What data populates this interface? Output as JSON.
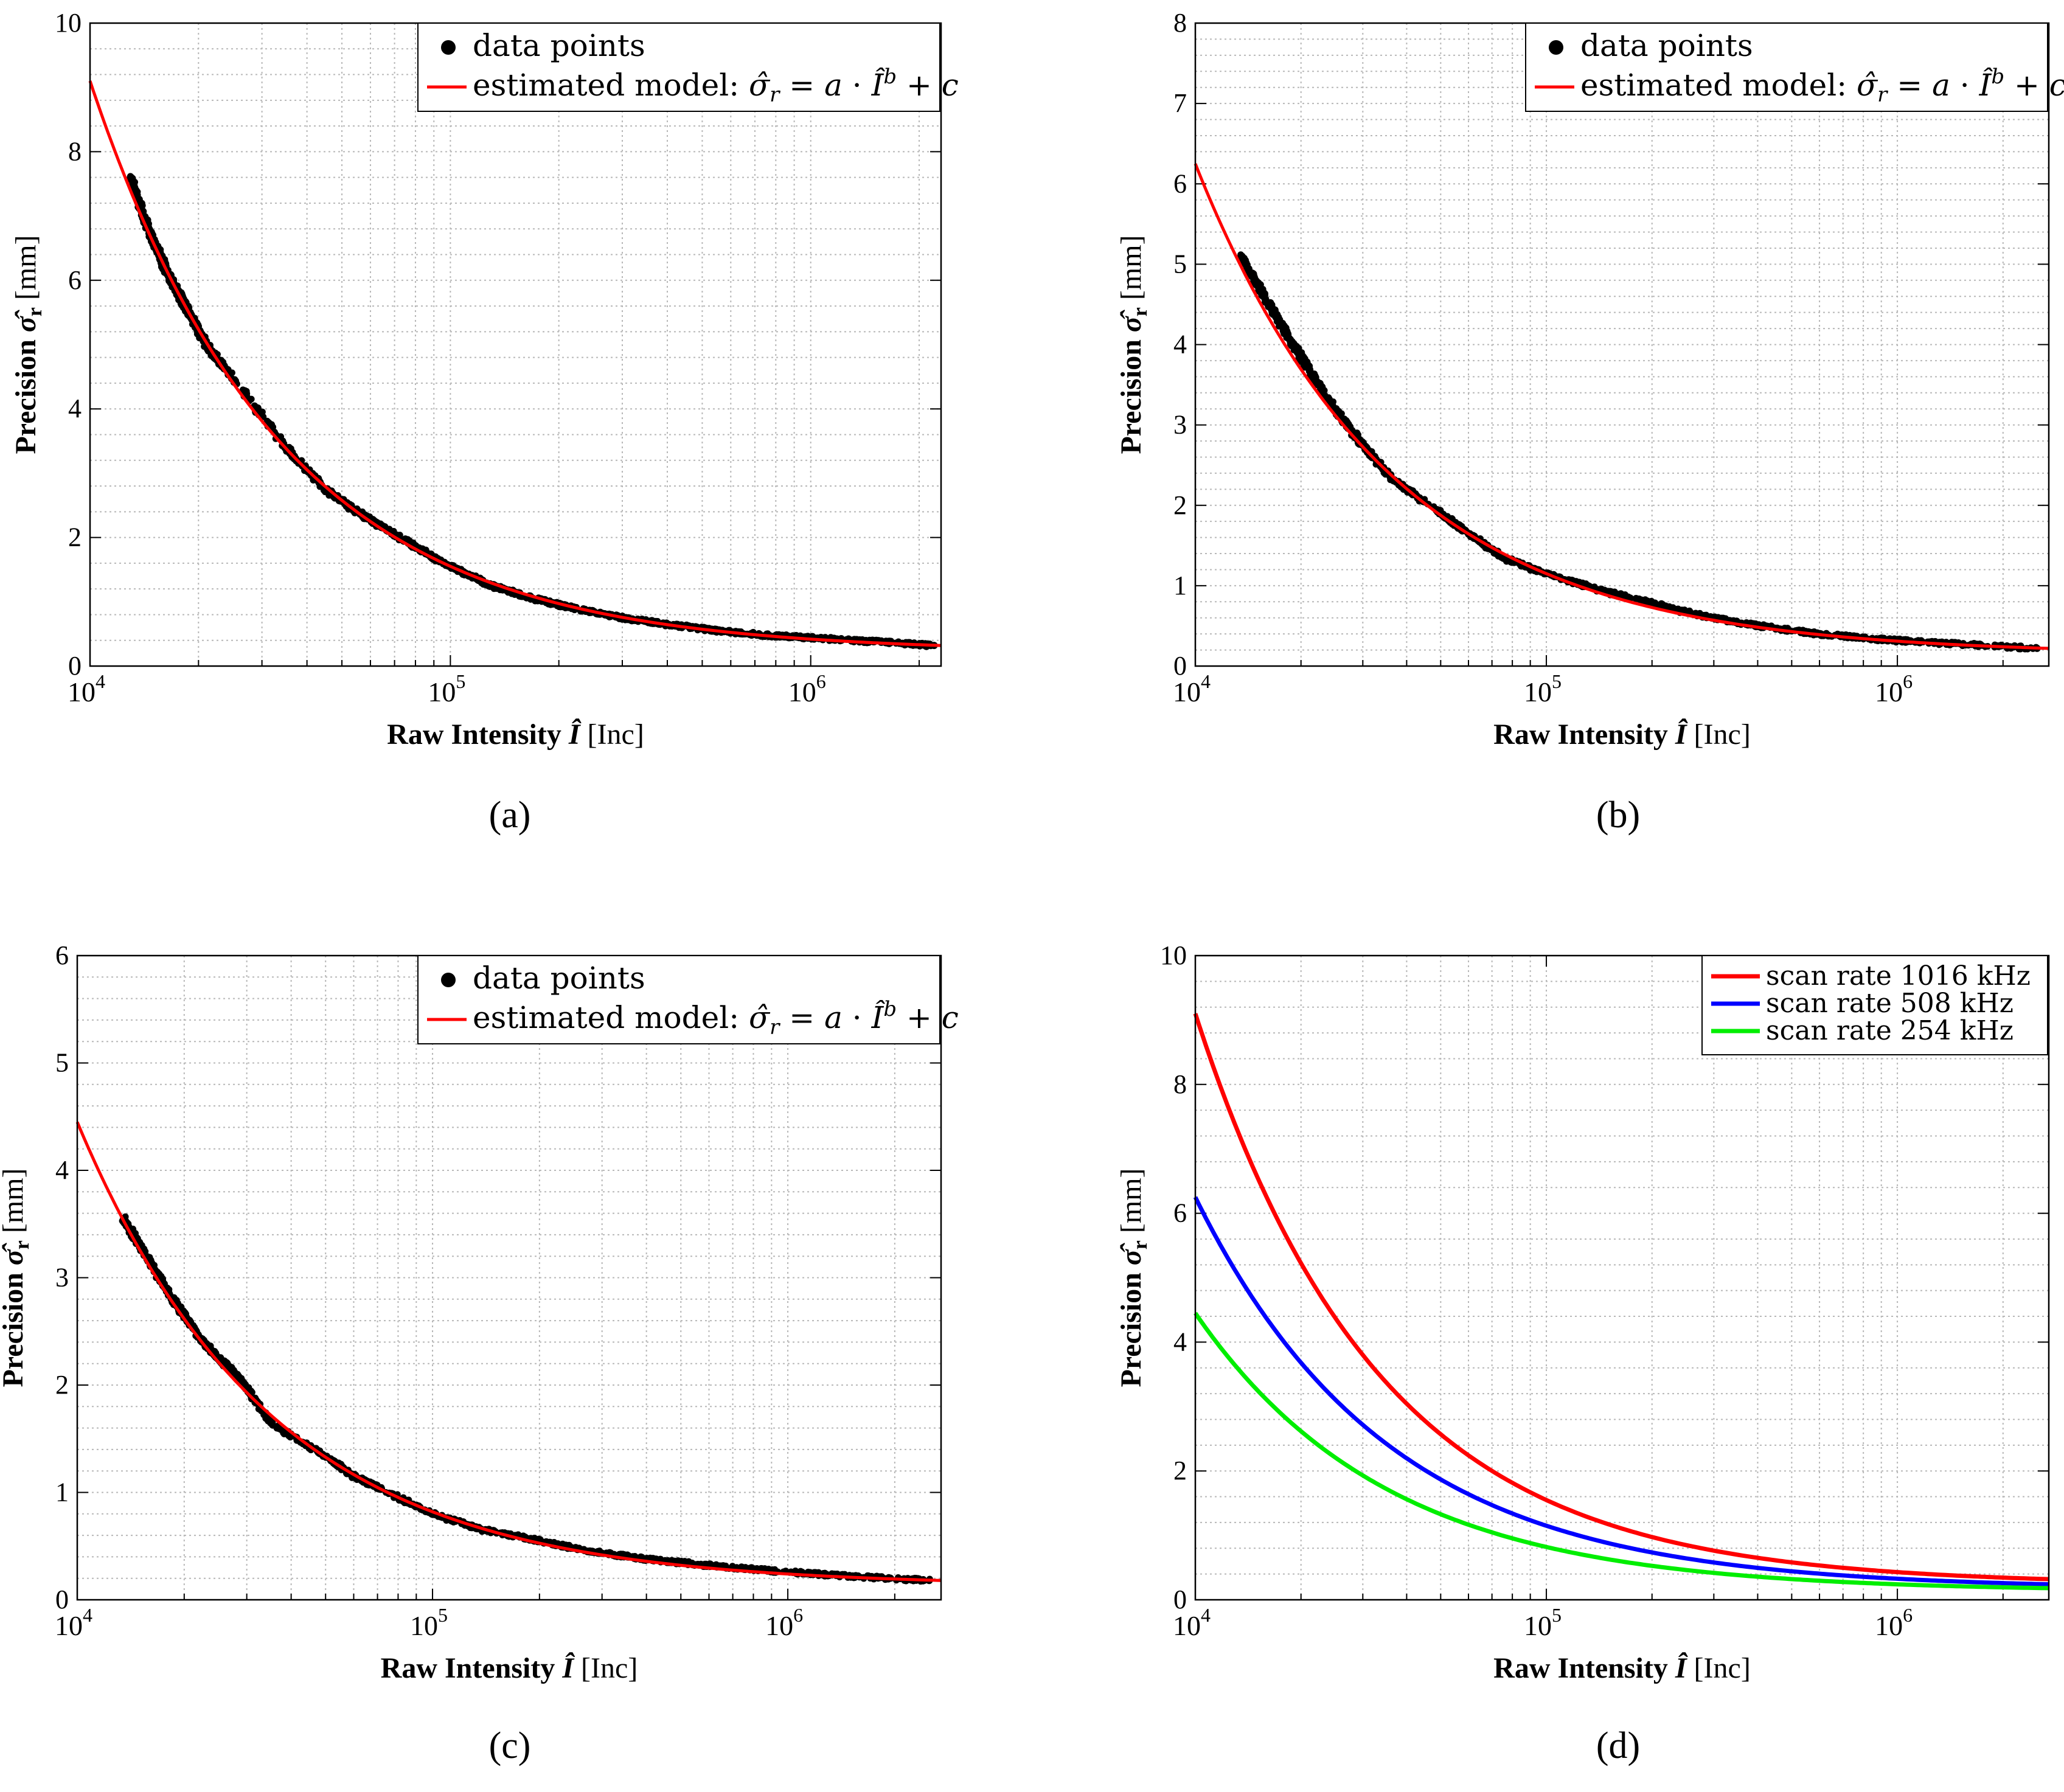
{
  "axis_common": {
    "xlabel_text": "Raw Intensity",
    "xlabel_symbol": "Î",
    "xlabel_unit": "[Inc]",
    "ylabel_text": "Precision",
    "ylabel_symbol": "σ̂",
    "ylabel_sub": "r",
    "ylabel_unit": "[mm]",
    "xtick_base": "10",
    "xtick_exponents": [
      "4",
      "5",
      "6"
    ]
  },
  "colors": {
    "scatter": "#000000",
    "model": "#ff0000",
    "blue": "#0000ff",
    "green": "#00ee00",
    "grid": "#b8b8b8"
  },
  "chart_data": [
    {
      "id": "a",
      "caption": "(a)",
      "type": "scatter",
      "xscale": "log",
      "xlim": [
        10000,
        2300000
      ],
      "ylim": [
        0,
        10
      ],
      "yticks": [
        "0",
        "2",
        "4",
        "6",
        "8",
        "10"
      ],
      "title": "",
      "xlabel": "Raw Intensity Î [Inc]",
      "ylabel": "Precision σ̂r [mm]",
      "legend_position": "top-right",
      "legend": [
        {
          "kind": "dot",
          "label": "data points"
        },
        {
          "kind": "line",
          "label": "estimated model:",
          "formula": "σ̂r = a · Îb + c"
        }
      ],
      "model": {
        "start": [
          10000,
          9.1
        ],
        "end": [
          2300000,
          0.32
        ],
        "intensity_1e5": 1.55
      },
      "series": [
        {
          "name": "data points",
          "points": [
            [
              13000,
              7.6
            ],
            [
              14000,
              7.05
            ],
            [
              15000,
              6.6
            ],
            [
              16000,
              6.25
            ],
            [
              17000,
              5.95
            ],
            [
              18000,
              5.7
            ],
            [
              19000,
              5.45
            ],
            [
              21000,
              5.0
            ],
            [
              24000,
              4.6
            ],
            [
              35000,
              3.4
            ],
            [
              45000,
              2.75
            ],
            [
              55000,
              2.4
            ],
            [
              65000,
              2.15
            ],
            [
              80000,
              1.85
            ],
            [
              100000,
              1.55
            ],
            [
              130000,
              1.25
            ],
            [
              170000,
              1.05
            ],
            [
              220000,
              0.9
            ],
            [
              300000,
              0.75
            ],
            [
              400000,
              0.65
            ],
            [
              550000,
              0.55
            ],
            [
              750000,
              0.48
            ],
            [
              1000000,
              0.44
            ],
            [
              1500000,
              0.38
            ],
            [
              2200000,
              0.32
            ]
          ]
        },
        {
          "name": "estimated model",
          "style": "line"
        }
      ]
    },
    {
      "id": "b",
      "caption": "(b)",
      "type": "scatter",
      "xscale": "log",
      "xlim": [
        10000,
        2700000
      ],
      "ylim": [
        0,
        8
      ],
      "yticks": [
        "0",
        "1",
        "2",
        "3",
        "4",
        "5",
        "6",
        "7",
        "8"
      ],
      "title": "",
      "xlabel": "Raw Intensity Î [Inc]",
      "ylabel": "Precision σ̂r [mm]",
      "legend_position": "top-right",
      "legend": [
        {
          "kind": "dot",
          "label": "data points"
        },
        {
          "kind": "line",
          "label": "estimated model:",
          "formula": "σ̂r = a · Îb + c"
        }
      ],
      "model": {
        "start": [
          10000,
          6.25
        ],
        "end": [
          2700000,
          0.22
        ],
        "intensity_1e5": 1.15
      },
      "series": [
        {
          "name": "data points",
          "points": [
            [
              13500,
              5.1
            ],
            [
              15000,
              4.75
            ],
            [
              17000,
              4.35
            ],
            [
              19000,
              4.0
            ],
            [
              22000,
              3.55
            ],
            [
              26000,
              3.1
            ],
            [
              30000,
              2.75
            ],
            [
              36000,
              2.35
            ],
            [
              50000,
              1.9
            ],
            [
              60000,
              1.65
            ],
            [
              75000,
              1.35
            ],
            [
              100000,
              1.15
            ],
            [
              140000,
              0.95
            ],
            [
              200000,
              0.78
            ],
            [
              280000,
              0.62
            ],
            [
              400000,
              0.5
            ],
            [
              600000,
              0.4
            ],
            [
              900000,
              0.33
            ],
            [
              1400000,
              0.28
            ],
            [
              2500000,
              0.22
            ]
          ]
        },
        {
          "name": "estimated model",
          "style": "line"
        }
      ]
    },
    {
      "id": "c",
      "caption": "(c)",
      "type": "scatter",
      "xscale": "log",
      "xlim": [
        10000,
        2700000
      ],
      "ylim": [
        0,
        6
      ],
      "yticks": [
        "0",
        "1",
        "2",
        "3",
        "4",
        "5",
        "6"
      ],
      "title": "",
      "xlabel": "Raw Intensity Î [Inc]",
      "ylabel": "Precision σ̂r [mm]",
      "legend_position": "top-right",
      "legend": [
        {
          "kind": "dot",
          "label": "data points"
        },
        {
          "kind": "line",
          "label": "estimated model:",
          "formula": "σ̂r = a · Îb + c"
        }
      ],
      "model": {
        "start": [
          10000,
          4.45
        ],
        "end": [
          2700000,
          0.18
        ],
        "intensity_1e5": 0.82
      },
      "series": [
        {
          "name": "data points",
          "points": [
            [
              13500,
              3.55
            ],
            [
              15000,
              3.3
            ],
            [
              17000,
              3.0
            ],
            [
              19000,
              2.75
            ],
            [
              22000,
              2.45
            ],
            [
              25000,
              2.25
            ],
            [
              28000,
              2.1
            ],
            [
              35000,
              1.65
            ],
            [
              52000,
              1.3
            ],
            [
              60000,
              1.15
            ],
            [
              70000,
              1.05
            ],
            [
              100000,
              0.8
            ],
            [
              140000,
              0.65
            ],
            [
              200000,
              0.55
            ],
            [
              280000,
              0.45
            ],
            [
              400000,
              0.38
            ],
            [
              600000,
              0.32
            ],
            [
              900000,
              0.27
            ],
            [
              1500000,
              0.22
            ],
            [
              2500000,
              0.18
            ]
          ]
        },
        {
          "name": "estimated model",
          "style": "line"
        }
      ]
    },
    {
      "id": "d",
      "caption": "(d)",
      "type": "line",
      "xscale": "log",
      "xlim": [
        10000,
        2700000
      ],
      "ylim": [
        0,
        10
      ],
      "yticks": [
        "0",
        "2",
        "4",
        "6",
        "8",
        "10"
      ],
      "title": "",
      "xlabel": "Raw Intensity Î [Inc]",
      "ylabel": "Precision σ̂r [mm]",
      "legend_position": "top-right",
      "legend": [
        {
          "kind": "line",
          "color_key": "model",
          "label": "scan rate 1016 kHz"
        },
        {
          "kind": "line",
          "color_key": "blue",
          "label": "scan rate 508 kHz"
        },
        {
          "kind": "line",
          "color_key": "green",
          "label": "scan rate 254 kHz"
        }
      ],
      "series": [
        {
          "name": "scan rate 1016 kHz",
          "color_key": "model",
          "model": {
            "start": [
              10000,
              9.1
            ],
            "end": [
              2700000,
              0.32
            ],
            "intensity_1e5": 1.55
          }
        },
        {
          "name": "scan rate 508 kHz",
          "color_key": "blue",
          "model": {
            "start": [
              10000,
              6.25
            ],
            "end": [
              2700000,
              0.24
            ],
            "intensity_1e5": 1.15
          }
        },
        {
          "name": "scan rate 254 kHz",
          "color_key": "green",
          "model": {
            "start": [
              10000,
              4.45
            ],
            "end": [
              2700000,
              0.18
            ],
            "intensity_1e5": 0.82
          }
        }
      ]
    }
  ]
}
